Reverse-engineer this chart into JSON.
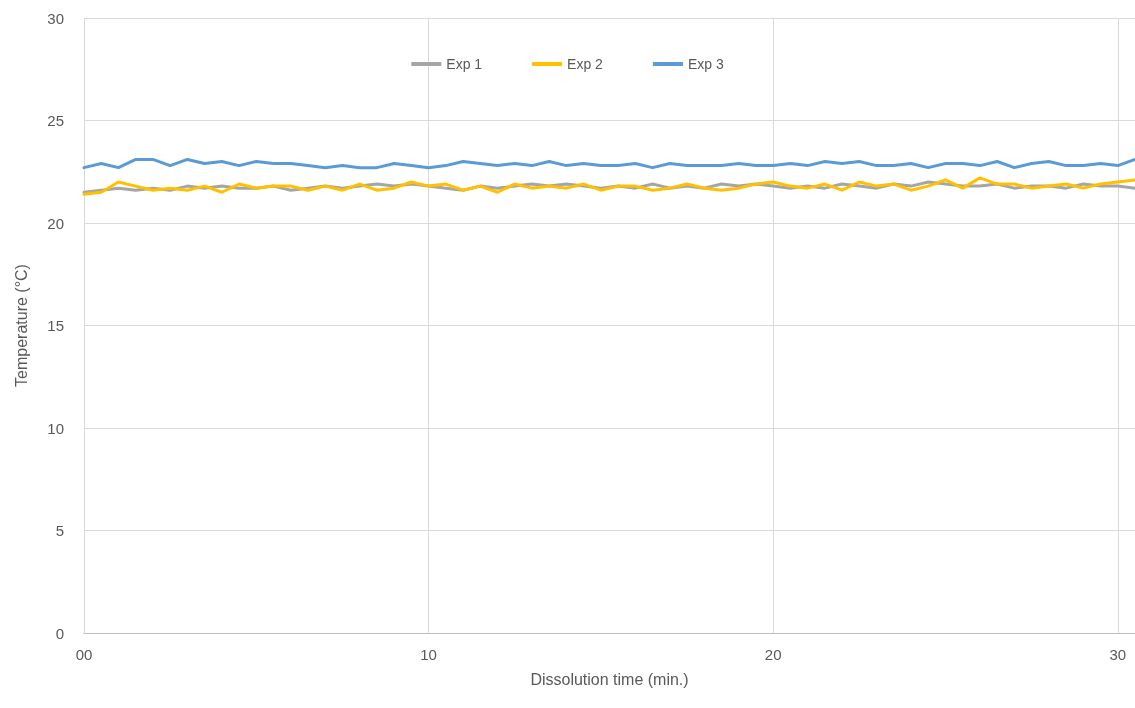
{
  "chart_data": {
    "type": "line",
    "xlabel": "Dissolution time (min.)",
    "ylabel": "Temperature (°C)",
    "x": [
      0,
      0.5,
      1,
      1.5,
      2,
      2.5,
      3,
      3.5,
      4,
      4.5,
      5,
      5.5,
      6,
      6.5,
      7,
      7.5,
      8,
      8.5,
      9,
      9.5,
      10,
      10.5,
      11,
      11.5,
      12,
      12.5,
      13,
      13.5,
      14,
      14.5,
      15,
      15.5,
      16,
      16.5,
      17,
      17.5,
      18,
      18.5,
      19,
      19.5,
      20,
      20.5,
      21,
      21.5,
      22,
      22.5,
      23,
      23.5,
      24,
      24.5,
      25,
      25.5,
      26,
      26.5,
      27,
      27.5,
      28,
      28.5,
      29,
      29.5,
      30,
      30.5
    ],
    "series": [
      {
        "name": "Exp 1",
        "color": "#a5a5a5",
        "values": [
          21.5,
          21.6,
          21.7,
          21.6,
          21.7,
          21.6,
          21.8,
          21.7,
          21.8,
          21.7,
          21.7,
          21.8,
          21.6,
          21.7,
          21.8,
          21.7,
          21.8,
          21.9,
          21.8,
          21.9,
          21.8,
          21.7,
          21.6,
          21.8,
          21.7,
          21.8,
          21.9,
          21.8,
          21.9,
          21.8,
          21.7,
          21.8,
          21.7,
          21.9,
          21.7,
          21.8,
          21.7,
          21.9,
          21.8,
          21.9,
          21.8,
          21.7,
          21.8,
          21.7,
          21.9,
          21.8,
          21.7,
          21.9,
          21.8,
          22.0,
          21.9,
          21.8,
          21.8,
          21.9,
          21.7,
          21.8,
          21.8,
          21.7,
          21.9,
          21.8,
          21.8,
          21.7
        ]
      },
      {
        "name": "Exp 2",
        "color": "#ffc000",
        "values": [
          21.4,
          21.5,
          22.0,
          21.8,
          21.6,
          21.7,
          21.6,
          21.8,
          21.5,
          21.9,
          21.7,
          21.8,
          21.8,
          21.6,
          21.8,
          21.6,
          21.9,
          21.6,
          21.7,
          22.0,
          21.8,
          21.9,
          21.6,
          21.8,
          21.5,
          21.9,
          21.7,
          21.8,
          21.7,
          21.9,
          21.6,
          21.8,
          21.8,
          21.6,
          21.7,
          21.9,
          21.7,
          21.6,
          21.7,
          21.9,
          22.0,
          21.8,
          21.7,
          21.9,
          21.6,
          22.0,
          21.8,
          21.9,
          21.6,
          21.8,
          22.1,
          21.7,
          22.2,
          21.9,
          21.9,
          21.7,
          21.8,
          21.9,
          21.7,
          21.9,
          22.0,
          22.1
        ]
      },
      {
        "name": "Exp 3",
        "color": "#5b9bd5",
        "values": [
          22.7,
          22.9,
          22.7,
          23.1,
          23.1,
          22.8,
          23.1,
          22.9,
          23.0,
          22.8,
          23.0,
          22.9,
          22.9,
          22.8,
          22.7,
          22.8,
          22.7,
          22.7,
          22.9,
          22.8,
          22.7,
          22.8,
          23.0,
          22.9,
          22.8,
          22.9,
          22.8,
          23.0,
          22.8,
          22.9,
          22.8,
          22.8,
          22.9,
          22.7,
          22.9,
          22.8,
          22.8,
          22.8,
          22.9,
          22.8,
          22.8,
          22.9,
          22.8,
          23.0,
          22.9,
          23.0,
          22.8,
          22.8,
          22.9,
          22.7,
          22.9,
          22.9,
          22.8,
          23.0,
          22.7,
          22.9,
          23.0,
          22.8,
          22.8,
          22.9,
          22.8,
          23.1
        ]
      }
    ],
    "xlim": [
      0,
      30.5
    ],
    "xticks": [
      {
        "value": 0,
        "label": "00"
      },
      10,
      20,
      30
    ],
    "ylim": [
      0,
      30
    ],
    "yticks": [
      0,
      5,
      10,
      15,
      20,
      25,
      30
    ],
    "grid": true,
    "legend": "top",
    "marker": "none",
    "line_style": "solid"
  }
}
